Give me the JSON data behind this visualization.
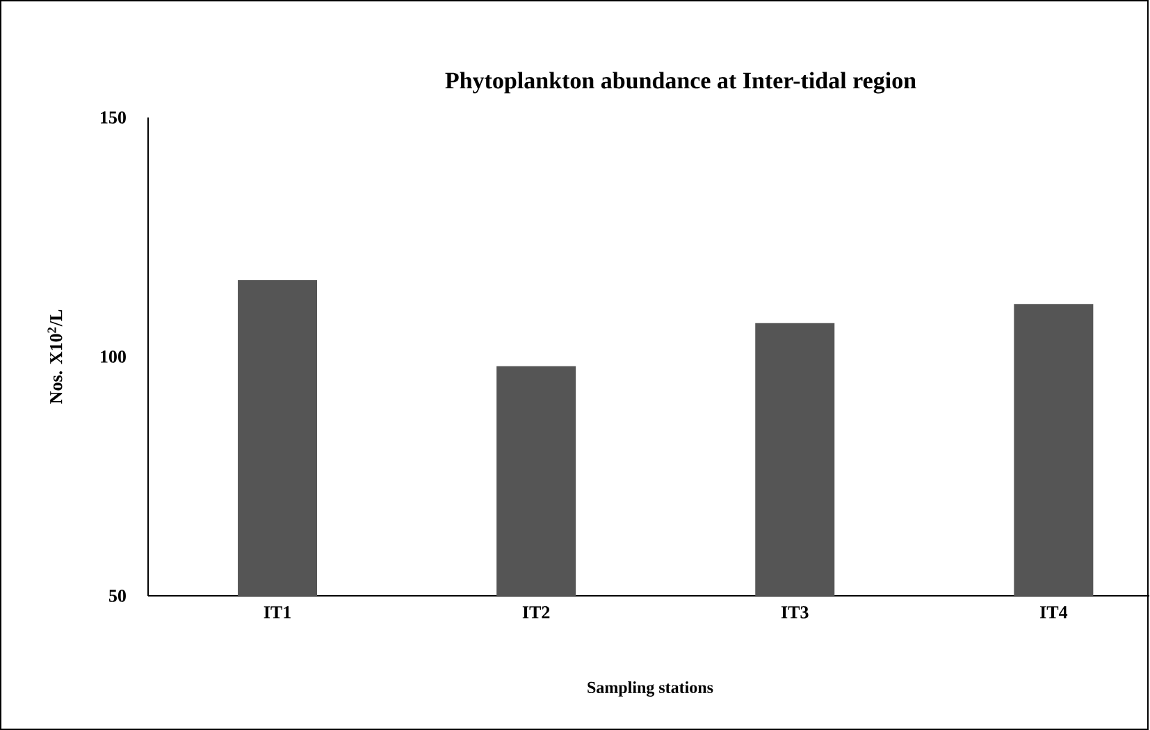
{
  "chart_data": {
    "type": "bar",
    "title": "Phytoplankton abundance at Inter-tidal region",
    "xlabel": "Sampling stations",
    "ylabel": "Nos. X10$^{2}$/L",
    "categories": [
      "IT1",
      "IT2",
      "IT3",
      "IT4"
    ],
    "values": [
      116,
      98,
      107,
      111
    ],
    "color": "#555555",
    "ylim": [
      50,
      150
    ],
    "yticks": [
      50,
      100,
      150
    ],
    "grid": false
  }
}
